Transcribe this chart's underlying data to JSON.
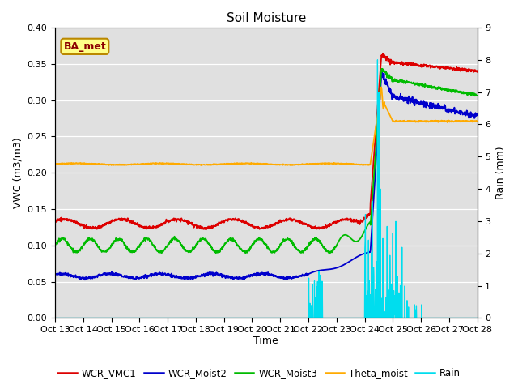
{
  "title": "Soil Moisture",
  "xlabel": "Time",
  "ylabel_left": "VWC (m3/m3)",
  "ylabel_right": "Rain (mm)",
  "ylim_left": [
    0.0,
    0.4
  ],
  "ylim_right": [
    0.0,
    9.0
  ],
  "x_tick_labels": [
    "Oct 13",
    "Oct 14",
    "Oct 15",
    "Oct 16",
    "Oct 17",
    "Oct 18",
    "Oct 19",
    "Oct 20",
    "Oct 21",
    "Oct 22",
    "Oct 23",
    "Oct 24",
    "Oct 25",
    "Oct 26",
    "Oct 27",
    "Oct 28"
  ],
  "station_label": "BA_met",
  "background_color": "#e0e0e0",
  "colors": {
    "WCR_VMC1": "#dd0000",
    "WCR_Moist2": "#0000cc",
    "WCR_Moist3": "#00bb00",
    "Theta_moist": "#ffaa00",
    "Rain": "#00ddee"
  }
}
